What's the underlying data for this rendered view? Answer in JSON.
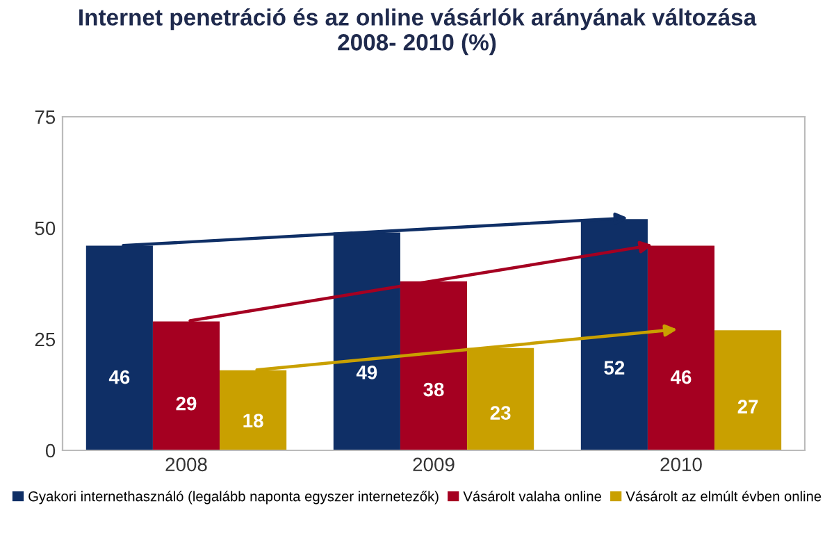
{
  "chart_data": {
    "type": "bar",
    "title": "Internet penetráció és az online vásárlók arányának változása\n2008- 2010 (%)",
    "categories": [
      "2008",
      "2009",
      "2010"
    ],
    "series": [
      {
        "name": "Gyakori internethasználó (legalább naponta egyszer internetezők)",
        "color": "#0f2f66",
        "values": [
          46,
          49,
          52
        ]
      },
      {
        "name": "Vásárolt valaha online",
        "color": "#a50021",
        "values": [
          29,
          38,
          46
        ]
      },
      {
        "name": "Vásárolt az elmúlt évben online",
        "color": "#c9a000",
        "values": [
          18,
          23,
          27
        ]
      }
    ],
    "ylim": [
      0,
      75
    ],
    "yticks": [
      0,
      25,
      50,
      75
    ],
    "data_labels": true,
    "grid": false,
    "legend": "bottom"
  }
}
